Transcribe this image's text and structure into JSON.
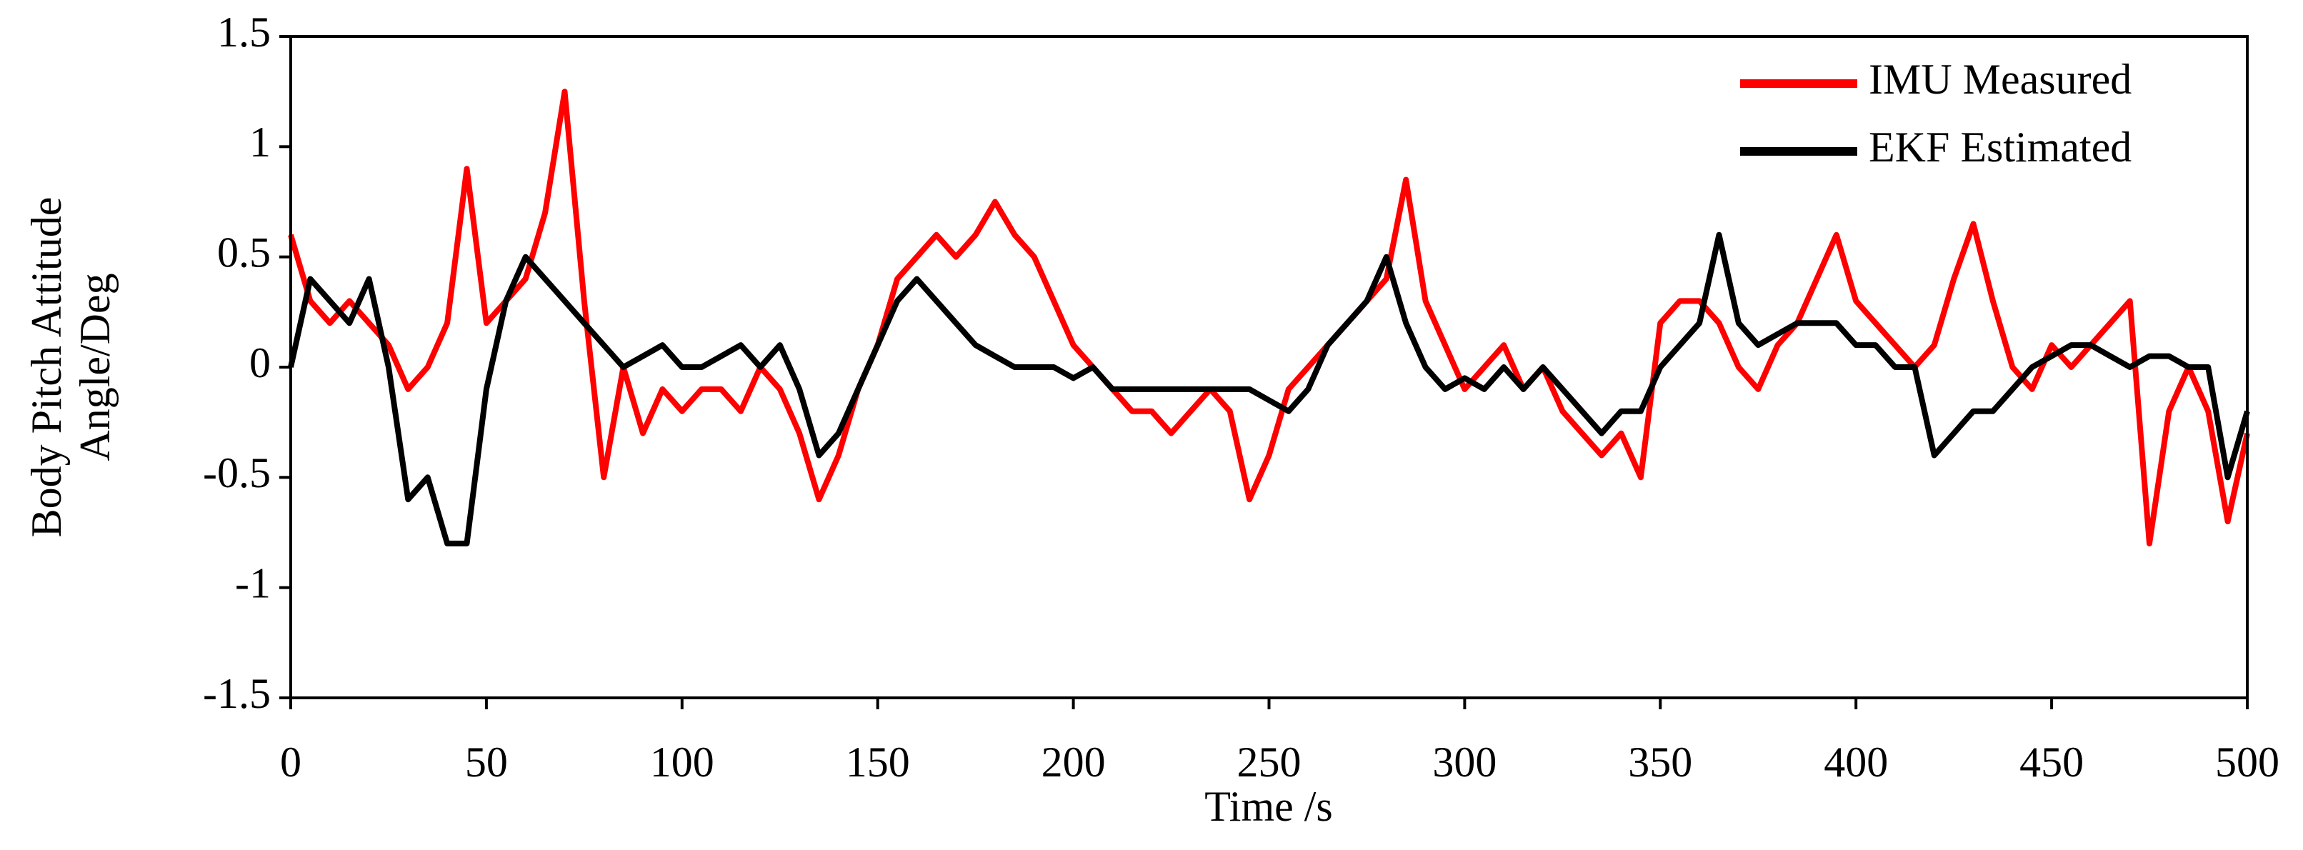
{
  "chart_data": {
    "type": "line",
    "xlabel": "Time /s",
    "ylabel": [
      "Body Pitch Attitude",
      "Angle/Deg"
    ],
    "xlim": [
      0,
      500
    ],
    "xticks": [
      0,
      50,
      100,
      150,
      200,
      250,
      300,
      350,
      400,
      450,
      500
    ],
    "ylim": [
      -1.5,
      1.5
    ],
    "yticks": [
      -1.5,
      -1,
      -0.5,
      0,
      0.5,
      1,
      1.5
    ],
    "grid": false,
    "legend": "upper right",
    "x": [
      0,
      5,
      10,
      15,
      20,
      25,
      30,
      35,
      40,
      45,
      50,
      55,
      60,
      65,
      70,
      75,
      80,
      85,
      90,
      95,
      100,
      105,
      110,
      115,
      120,
      125,
      130,
      135,
      140,
      145,
      150,
      155,
      160,
      165,
      170,
      175,
      180,
      185,
      190,
      195,
      200,
      205,
      210,
      215,
      220,
      225,
      230,
      235,
      240,
      245,
      250,
      255,
      260,
      265,
      270,
      275,
      280,
      285,
      290,
      295,
      300,
      305,
      310,
      315,
      320,
      325,
      330,
      335,
      340,
      345,
      350,
      355,
      360,
      365,
      370,
      375,
      380,
      385,
      390,
      395,
      400,
      405,
      410,
      415,
      420,
      425,
      430,
      435,
      440,
      445,
      450,
      455,
      460,
      465,
      470,
      475,
      480,
      485,
      490,
      495,
      500
    ],
    "series": [
      {
        "name": "IMU Measured",
        "color": "#ff0000",
        "values": [
          0.6,
          0.3,
          0.2,
          0.3,
          0.2,
          0.1,
          -0.1,
          0.0,
          0.2,
          0.9,
          0.2,
          0.3,
          0.4,
          0.7,
          1.25,
          0.3,
          -0.5,
          0.0,
          -0.3,
          -0.1,
          -0.2,
          -0.1,
          -0.1,
          -0.2,
          0.0,
          -0.1,
          -0.3,
          -0.6,
          -0.4,
          -0.1,
          0.1,
          0.4,
          0.5,
          0.6,
          0.5,
          0.6,
          0.75,
          0.6,
          0.5,
          0.3,
          0.1,
          0.0,
          -0.1,
          -0.2,
          -0.2,
          -0.3,
          -0.2,
          -0.1,
          -0.2,
          -0.6,
          -0.4,
          -0.1,
          0.0,
          0.1,
          0.2,
          0.3,
          0.4,
          0.85,
          0.3,
          0.1,
          -0.1,
          0.0,
          0.1,
          -0.1,
          0.0,
          -0.2,
          -0.3,
          -0.4,
          -0.3,
          -0.5,
          0.2,
          0.3,
          0.3,
          0.2,
          0.0,
          -0.1,
          0.1,
          0.2,
          0.4,
          0.6,
          0.3,
          0.2,
          0.1,
          0.0,
          0.1,
          0.4,
          0.65,
          0.3,
          0.0,
          -0.1,
          0.1,
          0.0,
          0.1,
          0.2,
          0.3,
          -0.8,
          -0.2,
          0.0,
          -0.2,
          -0.7,
          -0.3
        ]
      },
      {
        "name": "EKF Estimated",
        "color": "#000000",
        "values": [
          0.0,
          0.4,
          0.3,
          0.2,
          0.4,
          0.0,
          -0.6,
          -0.5,
          -0.8,
          -0.8,
          -0.1,
          0.3,
          0.5,
          0.4,
          0.3,
          0.2,
          0.1,
          0.0,
          0.05,
          0.1,
          0.0,
          0.0,
          0.05,
          0.1,
          0.0,
          0.1,
          -0.1,
          -0.4,
          -0.3,
          -0.1,
          0.1,
          0.3,
          0.4,
          0.3,
          0.2,
          0.1,
          0.05,
          0.0,
          0.0,
          0.0,
          -0.05,
          0.0,
          -0.1,
          -0.1,
          -0.1,
          -0.1,
          -0.1,
          -0.1,
          -0.1,
          -0.1,
          -0.15,
          -0.2,
          -0.1,
          0.1,
          0.2,
          0.3,
          0.5,
          0.2,
          0.0,
          -0.1,
          -0.05,
          -0.1,
          0.0,
          -0.1,
          0.0,
          -0.1,
          -0.2,
          -0.3,
          -0.2,
          -0.2,
          0.0,
          0.1,
          0.2,
          0.6,
          0.2,
          0.1,
          0.15,
          0.2,
          0.2,
          0.2,
          0.1,
          0.1,
          0.0,
          0.0,
          -0.4,
          -0.3,
          -0.2,
          -0.2,
          -0.1,
          0.0,
          0.05,
          0.1,
          0.1,
          0.05,
          0.0,
          0.05,
          0.05,
          0.0,
          0.0,
          -0.5,
          -0.2
        ]
      }
    ]
  }
}
